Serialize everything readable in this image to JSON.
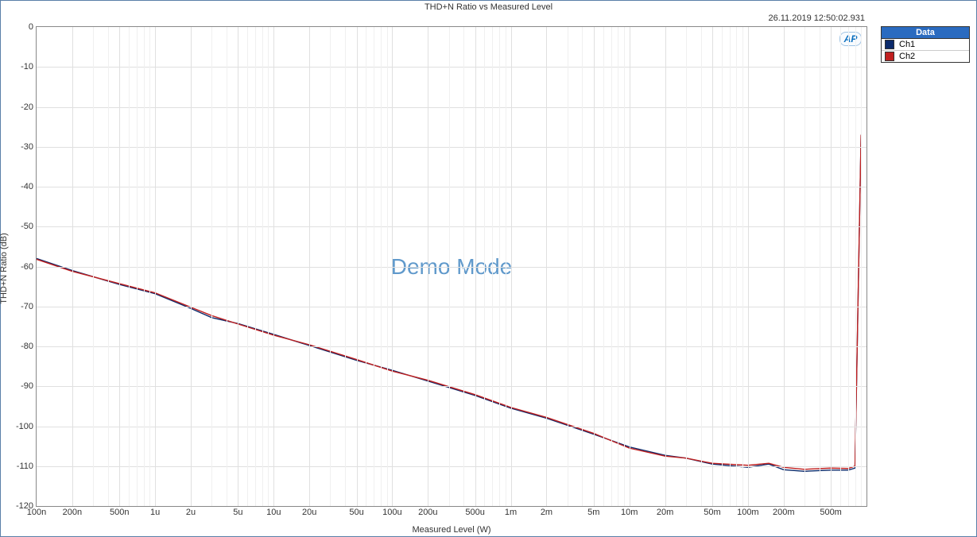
{
  "chart": {
    "type": "line",
    "title": "THD+N Ratio vs Measured Level",
    "timestamp": "26.11.2019 12:50:02.931",
    "watermark": "Demo Mode",
    "ap_logo_text": "AP",
    "xlabel": "Measured Level (W)",
    "ylabel": "THD+N Ratio (dB)",
    "background_color": "#ffffff",
    "grid_color": "#e0e0e0",
    "minor_grid_color": "#f0f0f0",
    "border_color": "#5a7fa8",
    "plot_border_color": "#888888",
    "ylim": [
      -120,
      0
    ],
    "ytick_step": 10,
    "x_log_min": -7,
    "x_log_max": 0,
    "xticks": [
      {
        "exp": -7,
        "label": "100n"
      },
      {
        "exp": -6.69897,
        "label": "200n"
      },
      {
        "exp": -6.30103,
        "label": "500n"
      },
      {
        "exp": -6,
        "label": "1u"
      },
      {
        "exp": -5.69897,
        "label": "2u"
      },
      {
        "exp": -5.30103,
        "label": "5u"
      },
      {
        "exp": -5,
        "label": "10u"
      },
      {
        "exp": -4.69897,
        "label": "20u"
      },
      {
        "exp": -4.30103,
        "label": "50u"
      },
      {
        "exp": -4,
        "label": "100u"
      },
      {
        "exp": -3.69897,
        "label": "200u"
      },
      {
        "exp": -3.30103,
        "label": "500u"
      },
      {
        "exp": -3,
        "label": "1m"
      },
      {
        "exp": -2.69897,
        "label": "2m"
      },
      {
        "exp": -2.30103,
        "label": "5m"
      },
      {
        "exp": -2,
        "label": "10m"
      },
      {
        "exp": -1.69897,
        "label": "20m"
      },
      {
        "exp": -1.30103,
        "label": "50m"
      },
      {
        "exp": -1,
        "label": "100m"
      },
      {
        "exp": -0.69897,
        "label": "200m"
      },
      {
        "exp": -0.30103,
        "label": "500m"
      }
    ],
    "x_minor_mantissas": [
      1,
      2,
      3,
      4,
      5,
      6,
      7,
      8,
      9
    ],
    "legend": {
      "header": "Data",
      "header_bg": "#2a6bc0",
      "header_color": "#ffffff",
      "items": [
        {
          "label": "Ch1",
          "color": "#0b2a6b"
        },
        {
          "label": "Ch2",
          "color": "#c02020"
        }
      ]
    },
    "series": [
      {
        "name": "Ch1",
        "color": "#0b2a6b",
        "line_width": 1.4,
        "points": [
          [
            -7.0,
            -58.0
          ],
          [
            -6.69897,
            -61.0
          ],
          [
            -6.30103,
            -64.5
          ],
          [
            -6.0,
            -66.8
          ],
          [
            -5.69897,
            -70.5
          ],
          [
            -5.52288,
            -72.8
          ],
          [
            -5.30103,
            -74.3
          ],
          [
            -5.0,
            -77.0
          ],
          [
            -4.69897,
            -79.8
          ],
          [
            -4.30103,
            -83.5
          ],
          [
            -4.0,
            -86.0
          ],
          [
            -3.69897,
            -88.7
          ],
          [
            -3.30103,
            -92.3
          ],
          [
            -3.0,
            -95.5
          ],
          [
            -2.69897,
            -98.0
          ],
          [
            -2.30103,
            -102.0
          ],
          [
            -2.0,
            -105.2
          ],
          [
            -1.69897,
            -107.3
          ],
          [
            -1.52288,
            -108.0
          ],
          [
            -1.30103,
            -109.5
          ],
          [
            -1.0,
            -110.3
          ],
          [
            -0.82391,
            -109.5
          ],
          [
            -0.69897,
            -110.9
          ],
          [
            -0.52288,
            -111.3
          ],
          [
            -0.30103,
            -111.0
          ],
          [
            -0.1549,
            -111.0
          ],
          [
            -0.09691,
            -110.5
          ],
          [
            -0.04576,
            -27.0
          ]
        ]
      },
      {
        "name": "Ch2",
        "color": "#c02020",
        "line_width": 1.4,
        "points": [
          [
            -7.0,
            -58.2
          ],
          [
            -6.69897,
            -61.2
          ],
          [
            -6.30103,
            -64.3
          ],
          [
            -6.0,
            -66.6
          ],
          [
            -5.69897,
            -70.2
          ],
          [
            -5.52288,
            -72.3
          ],
          [
            -5.30103,
            -74.4
          ],
          [
            -5.0,
            -77.2
          ],
          [
            -4.69897,
            -79.6
          ],
          [
            -4.30103,
            -83.3
          ],
          [
            -4.0,
            -86.2
          ],
          [
            -3.69897,
            -88.5
          ],
          [
            -3.30103,
            -92.1
          ],
          [
            -3.0,
            -95.3
          ],
          [
            -2.69897,
            -97.8
          ],
          [
            -2.30103,
            -101.8
          ],
          [
            -2.0,
            -105.5
          ],
          [
            -1.69897,
            -107.5
          ],
          [
            -1.52288,
            -108.0
          ],
          [
            -1.30103,
            -109.3
          ],
          [
            -1.0,
            -109.8
          ],
          [
            -0.82391,
            -109.3
          ],
          [
            -0.69897,
            -110.3
          ],
          [
            -0.52288,
            -110.8
          ],
          [
            -0.30103,
            -110.5
          ],
          [
            -0.1549,
            -110.6
          ],
          [
            -0.09691,
            -110.0
          ],
          [
            -0.04576,
            -27.0
          ]
        ]
      }
    ]
  }
}
